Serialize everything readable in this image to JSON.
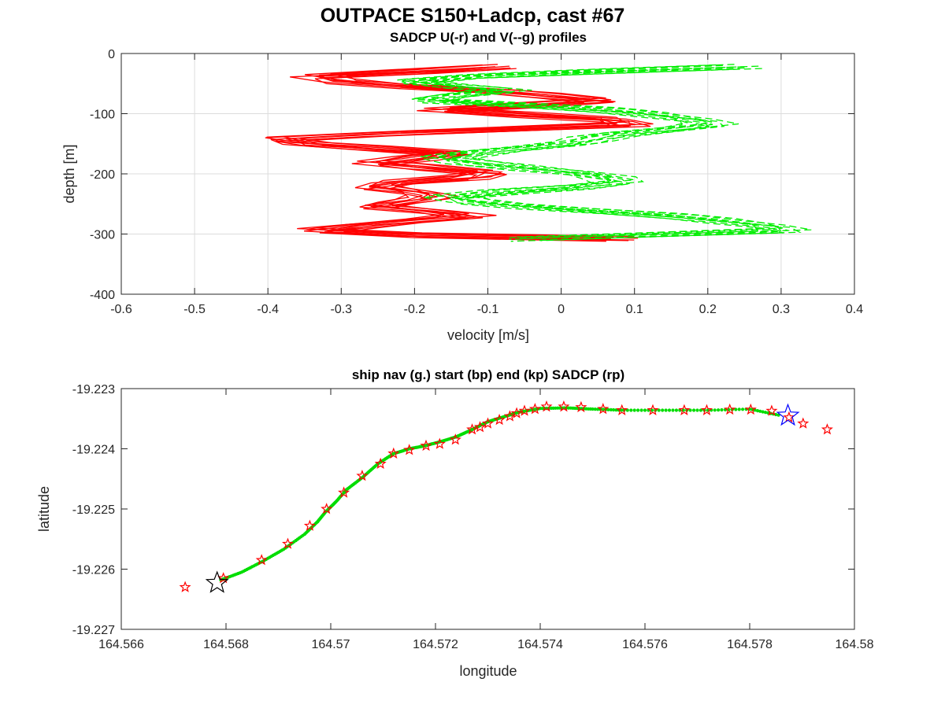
{
  "figure_title": "OUTPACE S150+Ladcp, cast #67",
  "chart_data": [
    {
      "type": "line",
      "title": "SADCP U(-r) and V(--g) profiles",
      "xlabel": "velocity [m/s]",
      "ylabel": "depth [m]",
      "xlim": [
        -0.6,
        0.4
      ],
      "ylim": [
        -400,
        0
      ],
      "xticks": [
        -0.6,
        -0.5,
        -0.4,
        -0.3,
        -0.2,
        -0.1,
        0,
        0.1,
        0.2,
        0.3,
        0.4
      ],
      "yticks": [
        -400,
        -300,
        -200,
        -100,
        0
      ],
      "grid": true,
      "depth": [
        -22,
        -30,
        -38,
        -46,
        -54,
        -62,
        -70,
        -78,
        -86,
        -94,
        -102,
        -110,
        -118,
        -126,
        -134,
        -142,
        -150,
        -158,
        -166,
        -174,
        -182,
        -190,
        -198,
        -206,
        -214,
        -222,
        -230,
        -238,
        -246,
        -254,
        -262,
        -270,
        -278,
        -286,
        -294,
        -302,
        -308
      ],
      "series": [
        {
          "color": "#ff0000",
          "linestyle": "solid",
          "values": [
            -0.09,
            -0.2,
            -0.33,
            -0.3,
            -0.22,
            -0.1,
            -0.02,
            0.05,
            -0.05,
            -0.16,
            -0.05,
            0.07,
            0.09,
            -0.08,
            -0.25,
            -0.38,
            -0.35,
            -0.25,
            -0.15,
            -0.2,
            -0.25,
            -0.18,
            -0.1,
            -0.13,
            -0.22,
            -0.25,
            -0.2,
            -0.18,
            -0.21,
            -0.25,
            -0.18,
            -0.13,
            -0.2,
            -0.27,
            -0.33,
            -0.2,
            0.08
          ]
        },
        {
          "color": "#00ee00",
          "linestyle": "dashed",
          "values": [
            0.24,
            0.05,
            -0.12,
            -0.2,
            -0.15,
            -0.08,
            -0.15,
            -0.18,
            -0.05,
            0.06,
            0.13,
            0.18,
            0.2,
            0.15,
            0.08,
            0.04,
            0.01,
            -0.06,
            -0.12,
            -0.16,
            -0.12,
            -0.05,
            0.02,
            0.06,
            0.08,
            0.02,
            -0.08,
            -0.15,
            -0.12,
            -0.05,
            0.05,
            0.15,
            0.22,
            0.28,
            0.3,
            0.1,
            -0.05
          ]
        }
      ]
    },
    {
      "type": "scatter",
      "title": "ship nav (g.) start (bp) end (kp) SADCP (rp)",
      "xlabel": "longitude",
      "ylabel": "latitude",
      "xlim": [
        164.566,
        164.58
      ],
      "ylim": [
        -19.227,
        -19.223
      ],
      "xticks": [
        164.566,
        164.568,
        164.57,
        164.572,
        164.574,
        164.576,
        164.578,
        164.58
      ],
      "yticks": [
        -19.227,
        -19.226,
        -19.225,
        -19.224,
        -19.223
      ],
      "grid": false,
      "ship_nav": {
        "color": "#00dd00",
        "points": [
          [
            164.5679,
            -19.22618
          ],
          [
            164.5683,
            -19.22605
          ],
          [
            164.5687,
            -19.22587
          ],
          [
            164.5691,
            -19.22567
          ],
          [
            164.5695,
            -19.22542
          ],
          [
            164.56975,
            -19.22521
          ],
          [
            164.5699,
            -19.22505
          ],
          [
            164.5701,
            -19.22488
          ],
          [
            164.5703,
            -19.22468
          ],
          [
            164.5706,
            -19.22448
          ],
          [
            164.5709,
            -19.22425
          ],
          [
            164.5712,
            -19.22408
          ],
          [
            164.5715,
            -19.224
          ],
          [
            164.5718,
            -19.22395
          ],
          [
            164.5721,
            -19.22388
          ],
          [
            164.5724,
            -19.2238
          ],
          [
            164.5727,
            -19.22368
          ],
          [
            164.573,
            -19.22355
          ],
          [
            164.5733,
            -19.22347
          ],
          [
            164.5736,
            -19.22339
          ],
          [
            164.574,
            -19.22333
          ],
          [
            164.5745,
            -19.22332
          ],
          [
            164.575,
            -19.22334
          ],
          [
            164.5756,
            -19.22336
          ],
          [
            164.5764,
            -19.22336
          ],
          [
            164.5772,
            -19.22336
          ],
          [
            164.578,
            -19.22334
          ],
          [
            164.5786,
            -19.22345
          ]
        ]
      },
      "start_point": {
        "color": "#0000ff",
        "lon": 164.57873,
        "lat": -19.22345
      },
      "end_point": {
        "color": "#000000",
        "lon": 164.56783,
        "lat": -19.22623
      },
      "sadcp_points": {
        "color": "#ff0000",
        "points": [
          [
            164.56722,
            -19.2263
          ],
          [
            164.56795,
            -19.22615
          ],
          [
            164.56868,
            -19.22585
          ],
          [
            164.56918,
            -19.22558
          ],
          [
            164.5696,
            -19.22528
          ],
          [
            164.56992,
            -19.225
          ],
          [
            164.57025,
            -19.22473
          ],
          [
            164.5706,
            -19.22445
          ],
          [
            164.57095,
            -19.22425
          ],
          [
            164.5712,
            -19.22408
          ],
          [
            164.5715,
            -19.22402
          ],
          [
            164.57182,
            -19.22395
          ],
          [
            164.57208,
            -19.22392
          ],
          [
            164.57238,
            -19.22385
          ],
          [
            164.5727,
            -19.22368
          ],
          [
            164.57285,
            -19.22364
          ],
          [
            164.573,
            -19.22358
          ],
          [
            164.57322,
            -19.22352
          ],
          [
            164.57342,
            -19.22346
          ],
          [
            164.57355,
            -19.22341
          ],
          [
            164.5737,
            -19.22337
          ],
          [
            164.5739,
            -19.22334
          ],
          [
            164.57412,
            -19.2233
          ],
          [
            164.57445,
            -19.2233
          ],
          [
            164.57478,
            -19.22331
          ],
          [
            164.5752,
            -19.22334
          ],
          [
            164.57556,
            -19.22336
          ],
          [
            164.57615,
            -19.22336
          ],
          [
            164.57675,
            -19.22336
          ],
          [
            164.57718,
            -19.22336
          ],
          [
            164.57762,
            -19.22335
          ],
          [
            164.57802,
            -19.22335
          ],
          [
            164.57842,
            -19.22337
          ],
          [
            164.57875,
            -19.22348
          ],
          [
            164.57902,
            -19.22358
          ],
          [
            164.57948,
            -19.22368
          ]
        ]
      }
    }
  ]
}
